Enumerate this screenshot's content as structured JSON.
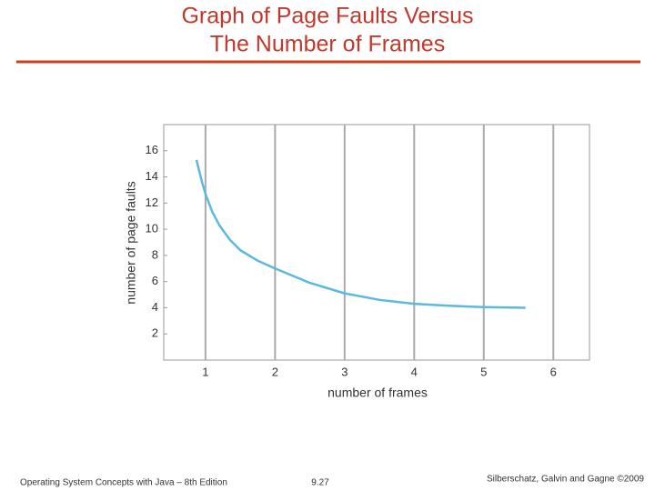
{
  "slide": {
    "title": [
      "Graph of Page Faults Versus",
      "The Number of Frames"
    ],
    "footer": {
      "left": "Operating System Concepts with Java – 8th Edition",
      "center": "9.27",
      "right": "Silberschatz, Galvin and Gagne ©2009"
    }
  },
  "chart_data": {
    "type": "line",
    "x_label": "number of frames",
    "y_label": "number of page faults",
    "x": [
      0.87,
      0.95,
      1.0,
      1.1,
      1.2,
      1.35,
      1.5,
      1.75,
      2.0,
      2.5,
      3.0,
      3.5,
      4.0,
      4.5,
      5.0,
      5.6
    ],
    "series": [
      {
        "color": "#5bb8e0",
        "values": [
          15.3,
          13.6,
          12.7,
          11.3,
          10.3,
          9.2,
          8.4,
          7.6,
          7.0,
          5.9,
          5.1,
          4.6,
          4.3,
          4.15,
          4.05,
          4.0
        ]
      }
    ],
    "xlim": [
      0.4,
      6.52
    ],
    "xticks": [
      1,
      2,
      3,
      4,
      5,
      6
    ],
    "ylim": [
      0,
      18
    ],
    "yticks": [
      2,
      4,
      6,
      8,
      10,
      12,
      14,
      16
    ],
    "grid": "x"
  }
}
